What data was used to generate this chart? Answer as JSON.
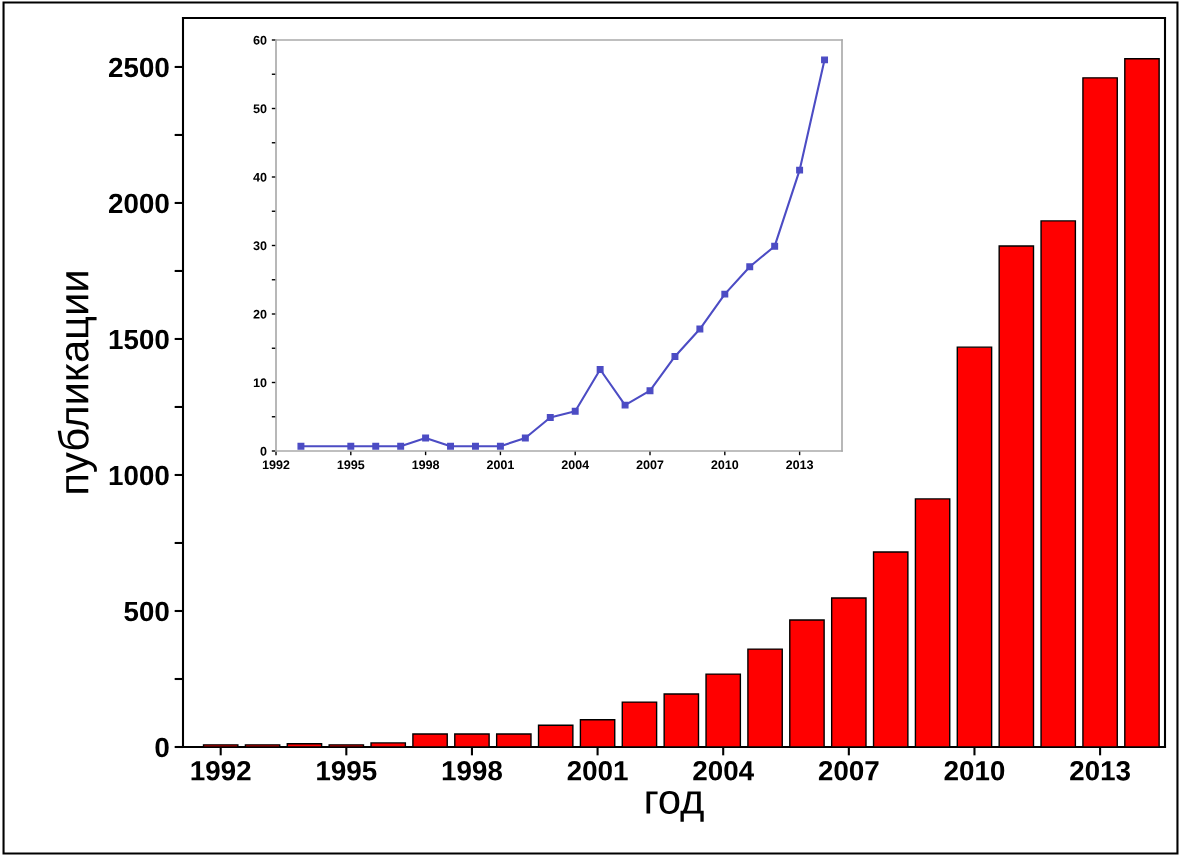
{
  "chart_data": [
    {
      "type": "bar",
      "xlabel": "год",
      "ylabel": "публикации",
      "color": "#ff0000",
      "x": [
        1992,
        1993,
        1994,
        1995,
        1996,
        1997,
        1998,
        1999,
        2000,
        2001,
        2002,
        2003,
        2004,
        2005,
        2006,
        2007,
        2008,
        2009,
        2010,
        2011,
        2012,
        2013,
        2014
      ],
      "values": [
        8,
        8,
        12,
        8,
        15,
        48,
        48,
        48,
        80,
        100,
        165,
        195,
        268,
        360,
        467,
        548,
        717,
        912,
        1470,
        1842,
        1934,
        2460,
        2530
      ],
      "xlim": [
        1991.1,
        2014.55
      ],
      "xticks": [
        1992,
        1995,
        1998,
        2001,
        2004,
        2007,
        2010,
        2013
      ],
      "ylim": [
        0,
        2680
      ],
      "yticks": [
        0,
        {
          "value": 250,
          "label": null
        },
        500,
        {
          "value": 750,
          "label": null
        },
        1000,
        {
          "value": 1250,
          "label": null
        },
        1500,
        {
          "value": 1750,
          "label": null
        },
        2000,
        {
          "value": 2250,
          "label": null
        },
        2500
      ],
      "grid": false,
      "legend": false
    },
    {
      "type": "line",
      "color": "#4c4cc4",
      "marker": "square",
      "line_style": "solid",
      "x": [
        1993,
        1995,
        1996,
        1997,
        1998,
        1999,
        2000,
        2001,
        2002,
        2003,
        2004,
        2005,
        2006,
        2007,
        2008,
        2009,
        2010,
        2011,
        2012,
        2013,
        2014
      ],
      "values": [
        0.7,
        0.7,
        0.7,
        0.7,
        1.9,
        0.7,
        0.7,
        0.7,
        1.9,
        4.9,
        5.8,
        11.9,
        6.7,
        8.8,
        13.8,
        17.8,
        22.9,
        26.9,
        29.9,
        41.0,
        57.1
      ],
      "xlim": [
        1992,
        2014.7
      ],
      "xticks": [
        1992,
        1995,
        1998,
        2001,
        2004,
        2007,
        2010,
        2013
      ],
      "ylim": [
        0,
        60
      ],
      "yticks": [
        0,
        {
          "value": 5,
          "label": null
        },
        10,
        {
          "value": 15,
          "label": null
        },
        20,
        {
          "value": 25,
          "label": null
        },
        30,
        {
          "value": 35,
          "label": null
        },
        40,
        {
          "value": 45,
          "label": null
        },
        50,
        {
          "value": 55,
          "label": null
        },
        60
      ],
      "grid": false,
      "legend": false
    }
  ]
}
